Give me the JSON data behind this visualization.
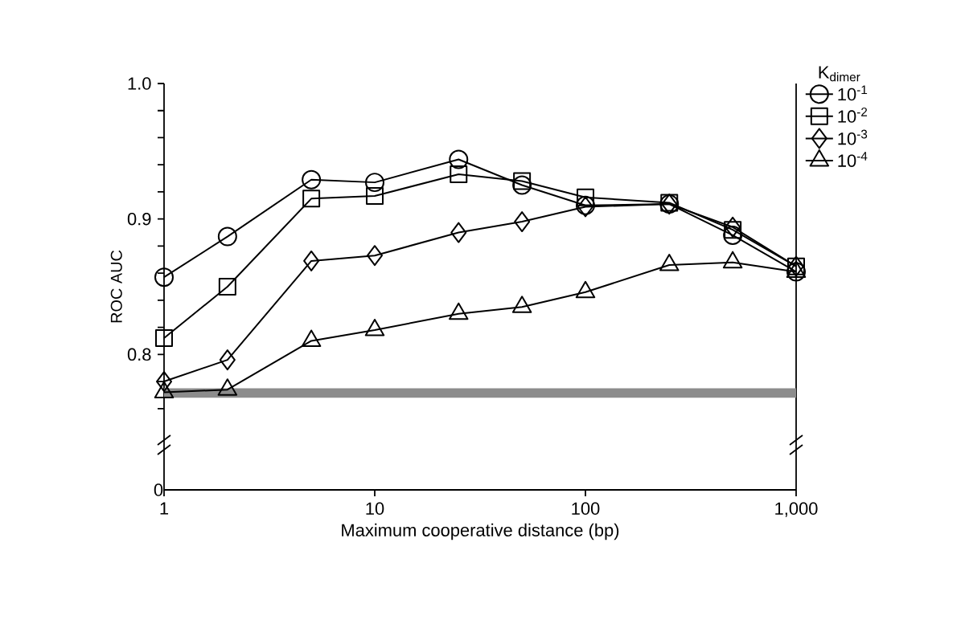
{
  "chart_data": {
    "type": "line",
    "ylabel": "ROC AUC",
    "xlabel": "Maximum cooperative distance (bp)",
    "legend_title": "K$_{dimer}$",
    "legend": "right",
    "log": "x",
    "grid": false,
    "annotations": [
      "0"
    ],
    "xlim": [
      1,
      1000
    ],
    "xticks": [
      1,
      10,
      100,
      {
        "value": 1000,
        "label": "1,000"
      }
    ],
    "ylim": [
      0.7,
      1.0
    ],
    "yticks": [
      {
        "value": 0.76,
        "label": null
      },
      {
        "value": 0.78,
        "label": null
      },
      0.8,
      {
        "value": 0.82,
        "label": null
      },
      {
        "value": 0.84,
        "label": null
      },
      {
        "value": 0.86,
        "label": null
      },
      {
        "value": 0.88,
        "label": null
      },
      0.9,
      {
        "value": 0.92,
        "label": null
      },
      {
        "value": 0.94,
        "label": null
      },
      {
        "value": 0.96,
        "label": null
      },
      {
        "value": 0.98,
        "label": null
      },
      {
        "value": 1.0,
        "label": "1.0"
      }
    ],
    "x": [
      1,
      2,
      5,
      10,
      25,
      50,
      100,
      250,
      500,
      1000
    ],
    "bands": [
      {
        "axis": "y",
        "from": 0.768,
        "to": 0.775,
        "color": "#8c8c8c"
      }
    ],
    "series": [
      {
        "name": "10$^{-1}$",
        "color": "#000000",
        "marker": "circle",
        "values": [
          0.857,
          0.887,
          0.929,
          0.927,
          0.944,
          0.925,
          0.91,
          0.911,
          0.888,
          0.861
        ]
      },
      {
        "name": "10$^{-2}$",
        "color": "#000000",
        "marker": "square",
        "values": [
          0.812,
          0.85,
          0.915,
          0.917,
          0.933,
          0.928,
          0.916,
          0.912,
          0.892,
          0.865
        ]
      },
      {
        "name": "10$^{-3}$",
        "color": "#000000",
        "marker": "diamond",
        "values": [
          0.78,
          0.796,
          0.869,
          0.873,
          0.89,
          0.898,
          0.909,
          0.911,
          0.894,
          0.865
        ]
      },
      {
        "name": "10$^{-4}$",
        "color": "#000000",
        "marker": "triangle",
        "values": [
          0.772,
          0.774,
          0.81,
          0.818,
          0.83,
          0.835,
          0.846,
          0.866,
          0.868,
          0.861
        ]
      }
    ]
  }
}
